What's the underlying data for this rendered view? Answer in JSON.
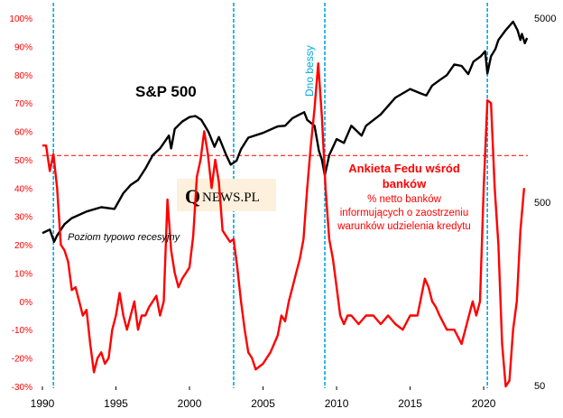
{
  "chart_data": {
    "type": "line",
    "x_axis": {
      "range": [
        1990,
        2023
      ],
      "tick_labels": [
        "1990",
        "1995",
        "2000",
        "2005",
        "2010",
        "2015",
        "2020"
      ],
      "tick_values": [
        1990,
        1995,
        2000,
        2005,
        2010,
        2015,
        2020
      ]
    },
    "left_axis": {
      "range": [
        -30,
        100
      ],
      "unit": "%",
      "tick_labels": [
        "100%",
        "90%",
        "80%",
        "70%",
        "60%",
        "50%",
        "40%",
        "30%",
        "20%",
        "10%",
        "0%",
        "-10%",
        "-20%",
        "-30%"
      ],
      "tick_values": [
        100,
        90,
        80,
        70,
        60,
        50,
        40,
        30,
        20,
        10,
        0,
        -10,
        -20,
        -30
      ],
      "color": "#ff0000"
    },
    "right_axis": {
      "scale": "log",
      "range": [
        50,
        5000
      ],
      "tick_labels": [
        "5000",
        "500",
        "50"
      ],
      "tick_values": [
        5000,
        500,
        50
      ]
    },
    "series": [
      {
        "name": "S&P 500",
        "axis": "right",
        "color": "#000000",
        "points": [
          [
            1990.0,
            340
          ],
          [
            1990.5,
            355
          ],
          [
            1990.8,
            305
          ],
          [
            1991.0,
            330
          ],
          [
            1991.5,
            380
          ],
          [
            1992.0,
            410
          ],
          [
            1993.0,
            445
          ],
          [
            1994.0,
            470
          ],
          [
            1994.9,
            460
          ],
          [
            1995.5,
            560
          ],
          [
            1996.0,
            620
          ],
          [
            1996.5,
            660
          ],
          [
            1997.0,
            760
          ],
          [
            1997.5,
            900
          ],
          [
            1998.0,
            980
          ],
          [
            1998.6,
            1150
          ],
          [
            1998.75,
            980
          ],
          [
            1999.0,
            1250
          ],
          [
            1999.5,
            1370
          ],
          [
            2000.0,
            1450
          ],
          [
            2000.4,
            1470
          ],
          [
            2000.8,
            1400
          ],
          [
            2001.0,
            1320
          ],
          [
            2001.3,
            1200
          ],
          [
            2001.7,
            1000
          ],
          [
            2002.0,
            1130
          ],
          [
            2002.5,
            900
          ],
          [
            2002.8,
            800
          ],
          [
            2003.2,
            840
          ],
          [
            2003.5,
            970
          ],
          [
            2004.0,
            1120
          ],
          [
            2005.0,
            1190
          ],
          [
            2006.0,
            1290
          ],
          [
            2006.5,
            1300
          ],
          [
            2007.0,
            1430
          ],
          [
            2007.5,
            1500
          ],
          [
            2007.8,
            1540
          ],
          [
            2008.0,
            1400
          ],
          [
            2008.5,
            1300
          ],
          [
            2008.8,
            950
          ],
          [
            2009.0,
            850
          ],
          [
            2009.2,
            700
          ],
          [
            2009.5,
            900
          ],
          [
            2010.0,
            1100
          ],
          [
            2010.5,
            1050
          ],
          [
            2011.0,
            1300
          ],
          [
            2011.7,
            1150
          ],
          [
            2012.0,
            1300
          ],
          [
            2013.0,
            1500
          ],
          [
            2014.0,
            1850
          ],
          [
            2015.0,
            2060
          ],
          [
            2015.7,
            1950
          ],
          [
            2016.1,
            1900
          ],
          [
            2016.5,
            2150
          ],
          [
            2017.0,
            2300
          ],
          [
            2017.5,
            2450
          ],
          [
            2018.0,
            2800
          ],
          [
            2018.5,
            2750
          ],
          [
            2018.95,
            2480
          ],
          [
            2019.3,
            2900
          ],
          [
            2019.8,
            3100
          ],
          [
            2020.1,
            3300
          ],
          [
            2020.25,
            2500
          ],
          [
            2020.5,
            3100
          ],
          [
            2020.8,
            3400
          ],
          [
            2021.0,
            3800
          ],
          [
            2021.5,
            4300
          ],
          [
            2022.0,
            4780
          ],
          [
            2022.3,
            4300
          ],
          [
            2022.5,
            3800
          ],
          [
            2022.6,
            4100
          ],
          [
            2022.8,
            3650
          ],
          [
            2022.95,
            3900
          ]
        ]
      },
      {
        "name": "Ankieta Fedu wśród banków % netto banków informujących o zaostrzeniu warunków udzielenia kredytu",
        "axis": "left",
        "color": "#ff0000",
        "points": [
          [
            1990.0,
            55
          ],
          [
            1990.25,
            55
          ],
          [
            1990.5,
            46
          ],
          [
            1990.75,
            52
          ],
          [
            1991.0,
            40
          ],
          [
            1991.25,
            20
          ],
          [
            1991.5,
            18
          ],
          [
            1991.75,
            14
          ],
          [
            1992.0,
            4
          ],
          [
            1992.25,
            5
          ],
          [
            1992.5,
            0
          ],
          [
            1992.75,
            -5
          ],
          [
            1993.0,
            -3
          ],
          [
            1993.25,
            -15
          ],
          [
            1993.5,
            -25
          ],
          [
            1993.75,
            -20
          ],
          [
            1994.0,
            -18
          ],
          [
            1994.25,
            -22
          ],
          [
            1994.5,
            -20
          ],
          [
            1994.75,
            -10
          ],
          [
            1995.0,
            -5
          ],
          [
            1995.25,
            3
          ],
          [
            1995.5,
            -5
          ],
          [
            1995.75,
            -10
          ],
          [
            1996.0,
            -5
          ],
          [
            1996.25,
            0
          ],
          [
            1996.5,
            -10
          ],
          [
            1996.75,
            -5
          ],
          [
            1997.0,
            -5
          ],
          [
            1997.25,
            -2
          ],
          [
            1997.5,
            0
          ],
          [
            1997.75,
            2
          ],
          [
            1998.0,
            -5
          ],
          [
            1998.25,
            0
          ],
          [
            1998.5,
            36
          ],
          [
            1998.75,
            18
          ],
          [
            1999.0,
            10
          ],
          [
            1999.25,
            5
          ],
          [
            1999.5,
            8
          ],
          [
            1999.75,
            10
          ],
          [
            2000.0,
            12
          ],
          [
            2000.25,
            23
          ],
          [
            2000.5,
            44
          ],
          [
            2000.75,
            50
          ],
          [
            2001.0,
            60
          ],
          [
            2001.25,
            52
          ],
          [
            2001.5,
            40
          ],
          [
            2001.75,
            50
          ],
          [
            2002.0,
            42
          ],
          [
            2002.25,
            25
          ],
          [
            2002.5,
            23
          ],
          [
            2002.75,
            21
          ],
          [
            2003.0,
            22
          ],
          [
            2003.25,
            12
          ],
          [
            2003.5,
            0
          ],
          [
            2003.75,
            -10
          ],
          [
            2004.0,
            -18
          ],
          [
            2004.25,
            -20
          ],
          [
            2004.5,
            -24
          ],
          [
            2004.75,
            -23
          ],
          [
            2005.0,
            -22
          ],
          [
            2005.25,
            -20
          ],
          [
            2005.5,
            -18
          ],
          [
            2005.75,
            -15
          ],
          [
            2006.0,
            -12
          ],
          [
            2006.25,
            -5
          ],
          [
            2006.5,
            -7
          ],
          [
            2006.75,
            0
          ],
          [
            2007.0,
            5
          ],
          [
            2007.25,
            10
          ],
          [
            2007.5,
            15
          ],
          [
            2007.75,
            22
          ],
          [
            2008.0,
            40
          ],
          [
            2008.25,
            55
          ],
          [
            2008.5,
            68
          ],
          [
            2008.75,
            84
          ],
          [
            2009.0,
            65
          ],
          [
            2009.25,
            40
          ],
          [
            2009.5,
            22
          ],
          [
            2009.75,
            15
          ],
          [
            2010.0,
            5
          ],
          [
            2010.25,
            -5
          ],
          [
            2010.5,
            -8
          ],
          [
            2010.75,
            -5
          ],
          [
            2011.0,
            -5
          ],
          [
            2011.5,
            -8
          ],
          [
            2012.0,
            -5
          ],
          [
            2012.5,
            -5
          ],
          [
            2013.0,
            -8
          ],
          [
            2013.5,
            -5
          ],
          [
            2014.0,
            -8
          ],
          [
            2014.5,
            -10
          ],
          [
            2015.0,
            -5
          ],
          [
            2015.5,
            -5
          ],
          [
            2016.0,
            8
          ],
          [
            2016.25,
            5
          ],
          [
            2016.5,
            0
          ],
          [
            2016.75,
            -2
          ],
          [
            2017.0,
            -5
          ],
          [
            2017.5,
            -10
          ],
          [
            2018.0,
            -10
          ],
          [
            2018.5,
            -15
          ],
          [
            2019.0,
            -5
          ],
          [
            2019.25,
            0
          ],
          [
            2019.5,
            -5
          ],
          [
            2019.75,
            0
          ],
          [
            2020.0,
            40
          ],
          [
            2020.25,
            71
          ],
          [
            2020.5,
            70
          ],
          [
            2020.75,
            40
          ],
          [
            2021.0,
            20
          ],
          [
            2021.25,
            -15
          ],
          [
            2021.5,
            -30
          ],
          [
            2021.75,
            -28
          ],
          [
            2022.0,
            -10
          ],
          [
            2022.25,
            0
          ],
          [
            2022.5,
            25
          ],
          [
            2022.75,
            40
          ]
        ]
      }
    ],
    "vertical_markers": [
      1990.75,
      2003.0,
      2009.2,
      2020.25
    ],
    "reference_line": {
      "value": 51.5,
      "label": "Poziom typowo recesyjny",
      "axis": "left"
    },
    "annotations": {
      "sp500_label": "S&P 500",
      "dno_bessy": "Dno bessy",
      "survey_title_line1": "Ankieta Fedu wśród",
      "survey_title_line2": "banków",
      "survey_desc_line1": "% netto banków",
      "survey_desc_line2": "informujących o zaostrzeniu",
      "survey_desc_line3": "warunków udzielenia kredytu"
    },
    "logo": {
      "letter": "Q",
      "text": "NEWS.PL"
    },
    "colors": {
      "grid_markers": "#00a9e0",
      "survey": "#ff0000",
      "sp500": "#000000",
      "logo_bg": "#fdf0dc"
    }
  }
}
